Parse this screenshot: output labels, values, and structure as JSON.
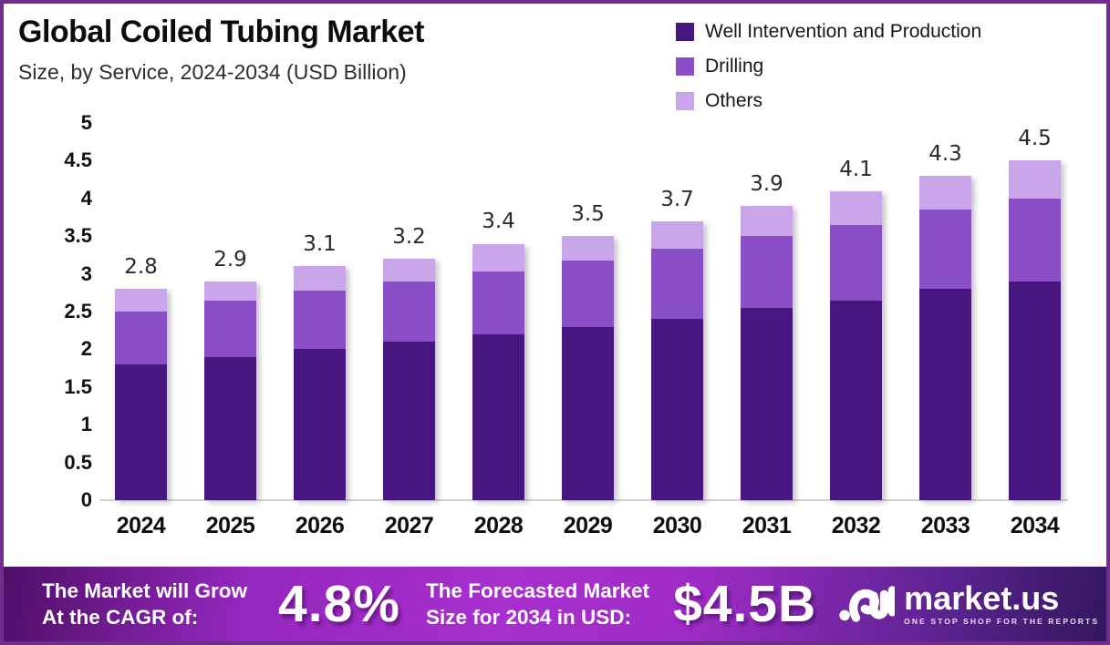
{
  "header": {
    "title": "Global Coiled Tubing Market",
    "subtitle": "Size, by Service, 2024-2034 (USD Billion)"
  },
  "legend": [
    {
      "label": "Well Intervention and Production",
      "color": "#47177f"
    },
    {
      "label": "Drilling",
      "color": "#8a4fc6"
    },
    {
      "label": "Others",
      "color": "#c9a5e9"
    }
  ],
  "chart_data": {
    "type": "bar",
    "stacked": true,
    "title": "Global Coiled Tubing Market Size, by Service, 2024-2034 (USD Billion)",
    "categories": [
      "2024",
      "2025",
      "2026",
      "2027",
      "2028",
      "2029",
      "2030",
      "2031",
      "2032",
      "2033",
      "2034"
    ],
    "series": [
      {
        "name": "Well Intervention and Production",
        "color": "#47177f",
        "values": [
          1.8,
          1.9,
          2.0,
          2.1,
          2.2,
          2.3,
          2.4,
          2.55,
          2.65,
          2.8,
          2.9
        ]
      },
      {
        "name": "Drilling",
        "color": "#8a4fc6",
        "values": [
          0.7,
          0.75,
          0.78,
          0.8,
          0.83,
          0.88,
          0.93,
          0.95,
          1.0,
          1.05,
          1.1
        ]
      },
      {
        "name": "Others",
        "color": "#c9a5e9",
        "values": [
          0.3,
          0.25,
          0.32,
          0.3,
          0.37,
          0.32,
          0.37,
          0.4,
          0.45,
          0.45,
          0.5
        ]
      }
    ],
    "totals": [
      "2.8",
      "2.9",
      "3.1",
      "3.2",
      "3.4",
      "3.5",
      "3.7",
      "3.9",
      "4.1",
      "4.3",
      "4.5"
    ],
    "ylim": [
      0,
      5
    ],
    "yticks": [
      "5",
      "4.5",
      "4",
      "3.5",
      "3",
      "2.5",
      "2",
      "1.5",
      "1",
      "0.5",
      "0"
    ],
    "xlabel": "",
    "ylabel": "",
    "grid": false,
    "legend_position": "top-right"
  },
  "footer": {
    "cagr_label_line1": "The Market will Grow",
    "cagr_label_line2": "At the CAGR of:",
    "cagr_value": "4.8%",
    "forecast_label_line1": "The Forecasted Market",
    "forecast_label_line2": "Size for 2034 in USD:",
    "forecast_value": "$4.5B",
    "brand": {
      "name": "market.us",
      "tagline": "ONE STOP SHOP FOR THE REPORTS"
    }
  },
  "colors": {
    "border": "#722b8e",
    "axis_line": "#d2d2d2",
    "banner_gradient_start": "#4f0f68",
    "banner_gradient_mid": "#a82fce",
    "banner_gradient_end": "#32175e"
  }
}
